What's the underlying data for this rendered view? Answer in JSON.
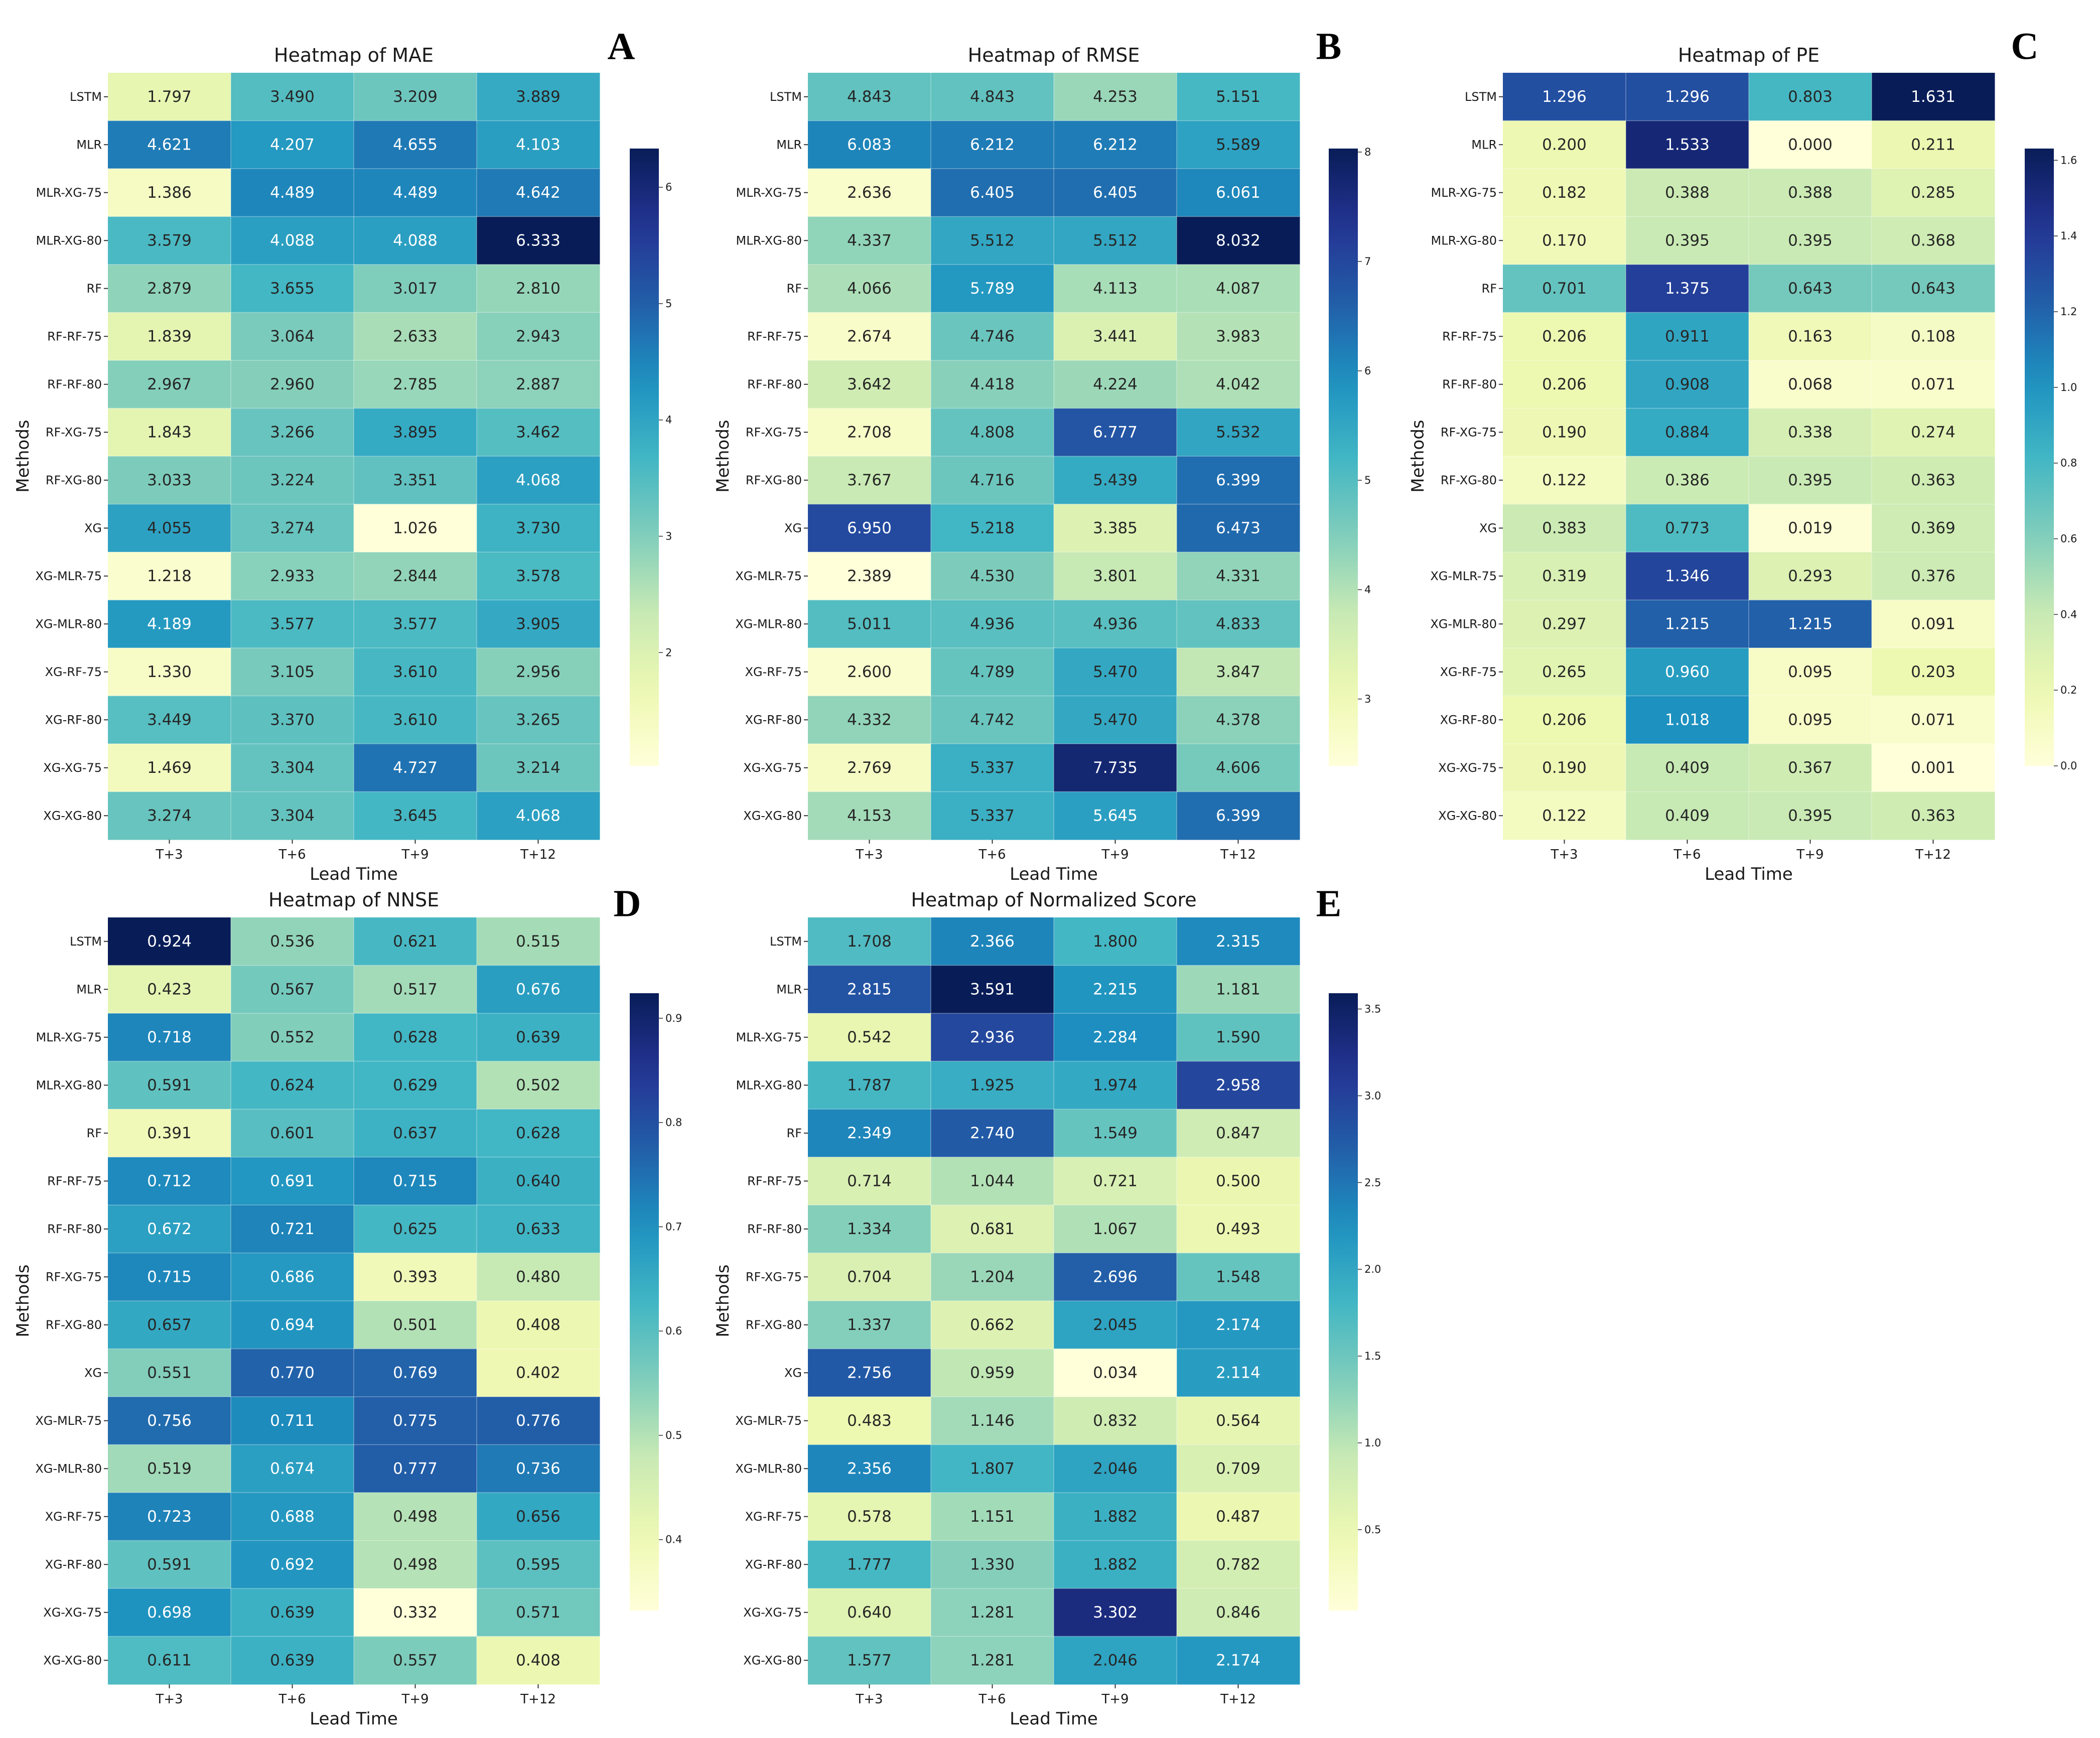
{
  "methods": [
    "LSTM",
    "MLR",
    "MLR-XG-75",
    "MLR-XG-80",
    "RF",
    "RF-RF-75",
    "RF-RF-80",
    "RF-XG-75",
    "RF-XG-80",
    "XG",
    "XG-MLR-75",
    "XG-MLR-80",
    "XG-RF-75",
    "XG-RF-80",
    "XG-XG-75",
    "XG-XG-80"
  ],
  "lead_times": [
    "T+3",
    "T+6",
    "T+9",
    "T+12"
  ],
  "chart_data": [
    {
      "type": "heatmap",
      "panel": "A",
      "title": "Heatmap of MAE",
      "xlabel": "Lead Time",
      "ylabel": "Methods",
      "vmin": 1.026,
      "vmax": 6.333,
      "colorbar_ticks": [
        "2",
        "3",
        "4",
        "5",
        "6"
      ],
      "values": [
        [
          "1.797",
          "3.490",
          "3.209",
          "3.889"
        ],
        [
          "4.621",
          "4.207",
          "4.655",
          "4.103"
        ],
        [
          "1.386",
          "4.489",
          "4.489",
          "4.642"
        ],
        [
          "3.579",
          "4.088",
          "4.088",
          "6.333"
        ],
        [
          "2.879",
          "3.655",
          "3.017",
          "2.810"
        ],
        [
          "1.839",
          "3.064",
          "2.633",
          "2.943"
        ],
        [
          "2.967",
          "2.960",
          "2.785",
          "2.887"
        ],
        [
          "1.843",
          "3.266",
          "3.895",
          "3.462"
        ],
        [
          "3.033",
          "3.224",
          "3.351",
          "4.068"
        ],
        [
          "4.055",
          "3.274",
          "1.026",
          "3.730"
        ],
        [
          "1.218",
          "2.933",
          "2.844",
          "3.578"
        ],
        [
          "4.189",
          "3.577",
          "3.577",
          "3.905"
        ],
        [
          "1.330",
          "3.105",
          "3.610",
          "2.956"
        ],
        [
          "3.449",
          "3.370",
          "3.610",
          "3.265"
        ],
        [
          "1.469",
          "3.304",
          "4.727",
          "3.214"
        ],
        [
          "3.274",
          "3.304",
          "3.645",
          "4.068"
        ]
      ]
    },
    {
      "type": "heatmap",
      "panel": "B",
      "title": "Heatmap of RMSE",
      "xlabel": "Lead Time",
      "ylabel": "Methods",
      "vmin": 2.389,
      "vmax": 8.032,
      "colorbar_ticks": [
        "3",
        "4",
        "5",
        "6",
        "7",
        "8"
      ],
      "values": [
        [
          "4.843",
          "4.843",
          "4.253",
          "5.151"
        ],
        [
          "6.083",
          "6.212",
          "6.212",
          "5.589"
        ],
        [
          "2.636",
          "6.405",
          "6.405",
          "6.061"
        ],
        [
          "4.337",
          "5.512",
          "5.512",
          "8.032"
        ],
        [
          "4.066",
          "5.789",
          "4.113",
          "4.087"
        ],
        [
          "2.674",
          "4.746",
          "3.441",
          "3.983"
        ],
        [
          "3.642",
          "4.418",
          "4.224",
          "4.042"
        ],
        [
          "2.708",
          "4.808",
          "6.777",
          "5.532"
        ],
        [
          "3.767",
          "4.716",
          "5.439",
          "6.399"
        ],
        [
          "6.950",
          "5.218",
          "3.385",
          "6.473"
        ],
        [
          "2.389",
          "4.530",
          "3.801",
          "4.331"
        ],
        [
          "5.011",
          "4.936",
          "4.936",
          "4.833"
        ],
        [
          "2.600",
          "4.789",
          "5.470",
          "3.847"
        ],
        [
          "4.332",
          "4.742",
          "5.470",
          "4.378"
        ],
        [
          "2.769",
          "5.337",
          "7.735",
          "4.606"
        ],
        [
          "4.153",
          "5.337",
          "5.645",
          "6.399"
        ]
      ]
    },
    {
      "type": "heatmap",
      "panel": "C",
      "title": "Heatmap of PE",
      "xlabel": "Lead Time",
      "ylabel": "Methods",
      "vmin": 0.0,
      "vmax": 1.631,
      "colorbar_ticks": [
        "0.0",
        "0.2",
        "0.4",
        "0.6",
        "0.8",
        "1.0",
        "1.2",
        "1.4",
        "1.6"
      ],
      "values": [
        [
          "1.296",
          "1.296",
          "0.803",
          "1.631"
        ],
        [
          "0.200",
          "1.533",
          "0.000",
          "0.211"
        ],
        [
          "0.182",
          "0.388",
          "0.388",
          "0.285"
        ],
        [
          "0.170",
          "0.395",
          "0.395",
          "0.368"
        ],
        [
          "0.701",
          "1.375",
          "0.643",
          "0.643"
        ],
        [
          "0.206",
          "0.911",
          "0.163",
          "0.108"
        ],
        [
          "0.206",
          "0.908",
          "0.068",
          "0.071"
        ],
        [
          "0.190",
          "0.884",
          "0.338",
          "0.274"
        ],
        [
          "0.122",
          "0.386",
          "0.395",
          "0.363"
        ],
        [
          "0.383",
          "0.773",
          "0.019",
          "0.369"
        ],
        [
          "0.319",
          "1.346",
          "0.293",
          "0.376"
        ],
        [
          "0.297",
          "1.215",
          "1.215",
          "0.091"
        ],
        [
          "0.265",
          "0.960",
          "0.095",
          "0.203"
        ],
        [
          "0.206",
          "1.018",
          "0.095",
          "0.071"
        ],
        [
          "0.190",
          "0.409",
          "0.367",
          "0.001"
        ],
        [
          "0.122",
          "0.409",
          "0.395",
          "0.363"
        ]
      ]
    },
    {
      "type": "heatmap",
      "panel": "D",
      "title": "Heatmap of NNSE",
      "xlabel": "Lead Time",
      "ylabel": "Methods",
      "vmin": 0.332,
      "vmax": 0.924,
      "colorbar_ticks": [
        "0.4",
        "0.5",
        "0.6",
        "0.7",
        "0.8",
        "0.9"
      ],
      "values": [
        [
          "0.924",
          "0.536",
          "0.621",
          "0.515"
        ],
        [
          "0.423",
          "0.567",
          "0.517",
          "0.676"
        ],
        [
          "0.718",
          "0.552",
          "0.628",
          "0.639"
        ],
        [
          "0.591",
          "0.624",
          "0.629",
          "0.502"
        ],
        [
          "0.391",
          "0.601",
          "0.637",
          "0.628"
        ],
        [
          "0.712",
          "0.691",
          "0.715",
          "0.640"
        ],
        [
          "0.672",
          "0.721",
          "0.625",
          "0.633"
        ],
        [
          "0.715",
          "0.686",
          "0.393",
          "0.480"
        ],
        [
          "0.657",
          "0.694",
          "0.501",
          "0.408"
        ],
        [
          "0.551",
          "0.770",
          "0.769",
          "0.402"
        ],
        [
          "0.756",
          "0.711",
          "0.775",
          "0.776"
        ],
        [
          "0.519",
          "0.674",
          "0.777",
          "0.736"
        ],
        [
          "0.723",
          "0.688",
          "0.498",
          "0.656"
        ],
        [
          "0.591",
          "0.692",
          "0.498",
          "0.595"
        ],
        [
          "0.698",
          "0.639",
          "0.332",
          "0.571"
        ],
        [
          "0.611",
          "0.639",
          "0.557",
          "0.408"
        ]
      ]
    },
    {
      "type": "heatmap",
      "panel": "E",
      "title": "Heatmap of Normalized Score",
      "xlabel": "Lead Time",
      "ylabel": "Methods",
      "vmin": 0.034,
      "vmax": 3.591,
      "colorbar_ticks": [
        "0.5",
        "1.0",
        "1.5",
        "2.0",
        "2.5",
        "3.0",
        "3.5"
      ],
      "values": [
        [
          "1.708",
          "2.366",
          "1.800",
          "2.315"
        ],
        [
          "2.815",
          "3.591",
          "2.215",
          "1.181"
        ],
        [
          "0.542",
          "2.936",
          "2.284",
          "1.590"
        ],
        [
          "1.787",
          "1.925",
          "1.974",
          "2.958"
        ],
        [
          "2.349",
          "2.740",
          "1.549",
          "0.847"
        ],
        [
          "0.714",
          "1.044",
          "0.721",
          "0.500"
        ],
        [
          "1.334",
          "0.681",
          "1.067",
          "0.493"
        ],
        [
          "0.704",
          "1.204",
          "2.696",
          "1.548"
        ],
        [
          "1.337",
          "0.662",
          "2.045",
          "2.174"
        ],
        [
          "2.756",
          "0.959",
          "0.034",
          "2.114"
        ],
        [
          "0.483",
          "1.146",
          "0.832",
          "0.564"
        ],
        [
          "2.356",
          "1.807",
          "2.046",
          "0.709"
        ],
        [
          "0.578",
          "1.151",
          "1.882",
          "0.487"
        ],
        [
          "1.777",
          "1.330",
          "1.882",
          "0.782"
        ],
        [
          "0.640",
          "1.281",
          "3.302",
          "0.846"
        ],
        [
          "1.577",
          "1.281",
          "2.046",
          "2.174"
        ]
      ]
    }
  ]
}
